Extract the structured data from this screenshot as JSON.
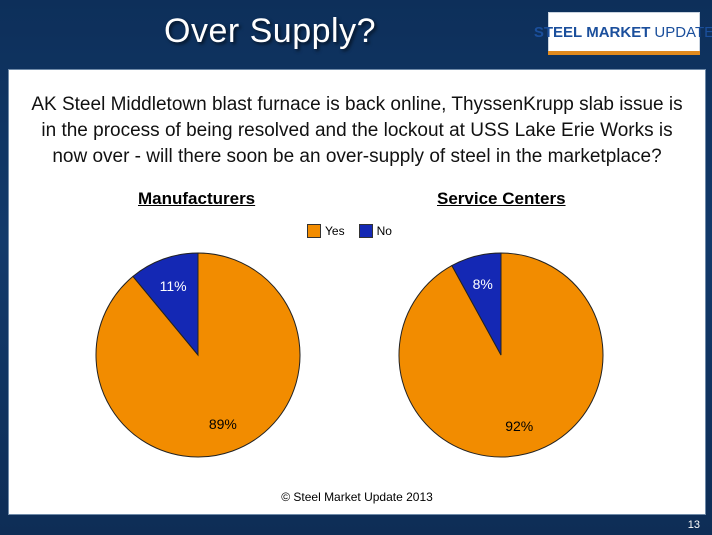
{
  "slide": {
    "title": "Over Supply?",
    "page_number": "13",
    "footer": "© Steel Market Update 2013"
  },
  "logo": {
    "word1": "STEEL",
    "word2": "MARKET",
    "word3": "UPDATE"
  },
  "question": "AK Steel Middletown blast furnace is back online, ThyssenKrupp slab issue is in the process of being resolved and the lockout at USS Lake Erie Works is now over - will there soon be an over-supply of steel in the marketplace?",
  "colors": {
    "yes": "#f28c00",
    "no": "#1428b4"
  },
  "chart_data": [
    {
      "type": "pie",
      "title": "Manufacturers",
      "categories": [
        "Yes",
        "No"
      ],
      "values": [
        89,
        11
      ],
      "labels": [
        "89%",
        "11%"
      ],
      "legend": "top-center"
    },
    {
      "type": "pie",
      "title": "Service Centers",
      "categories": [
        "Yes",
        "No"
      ],
      "values": [
        92,
        8
      ],
      "labels": [
        "92%",
        "8%"
      ],
      "legend": "top-center"
    }
  ],
  "legend": {
    "yes_label": "Yes",
    "no_label": "No"
  }
}
